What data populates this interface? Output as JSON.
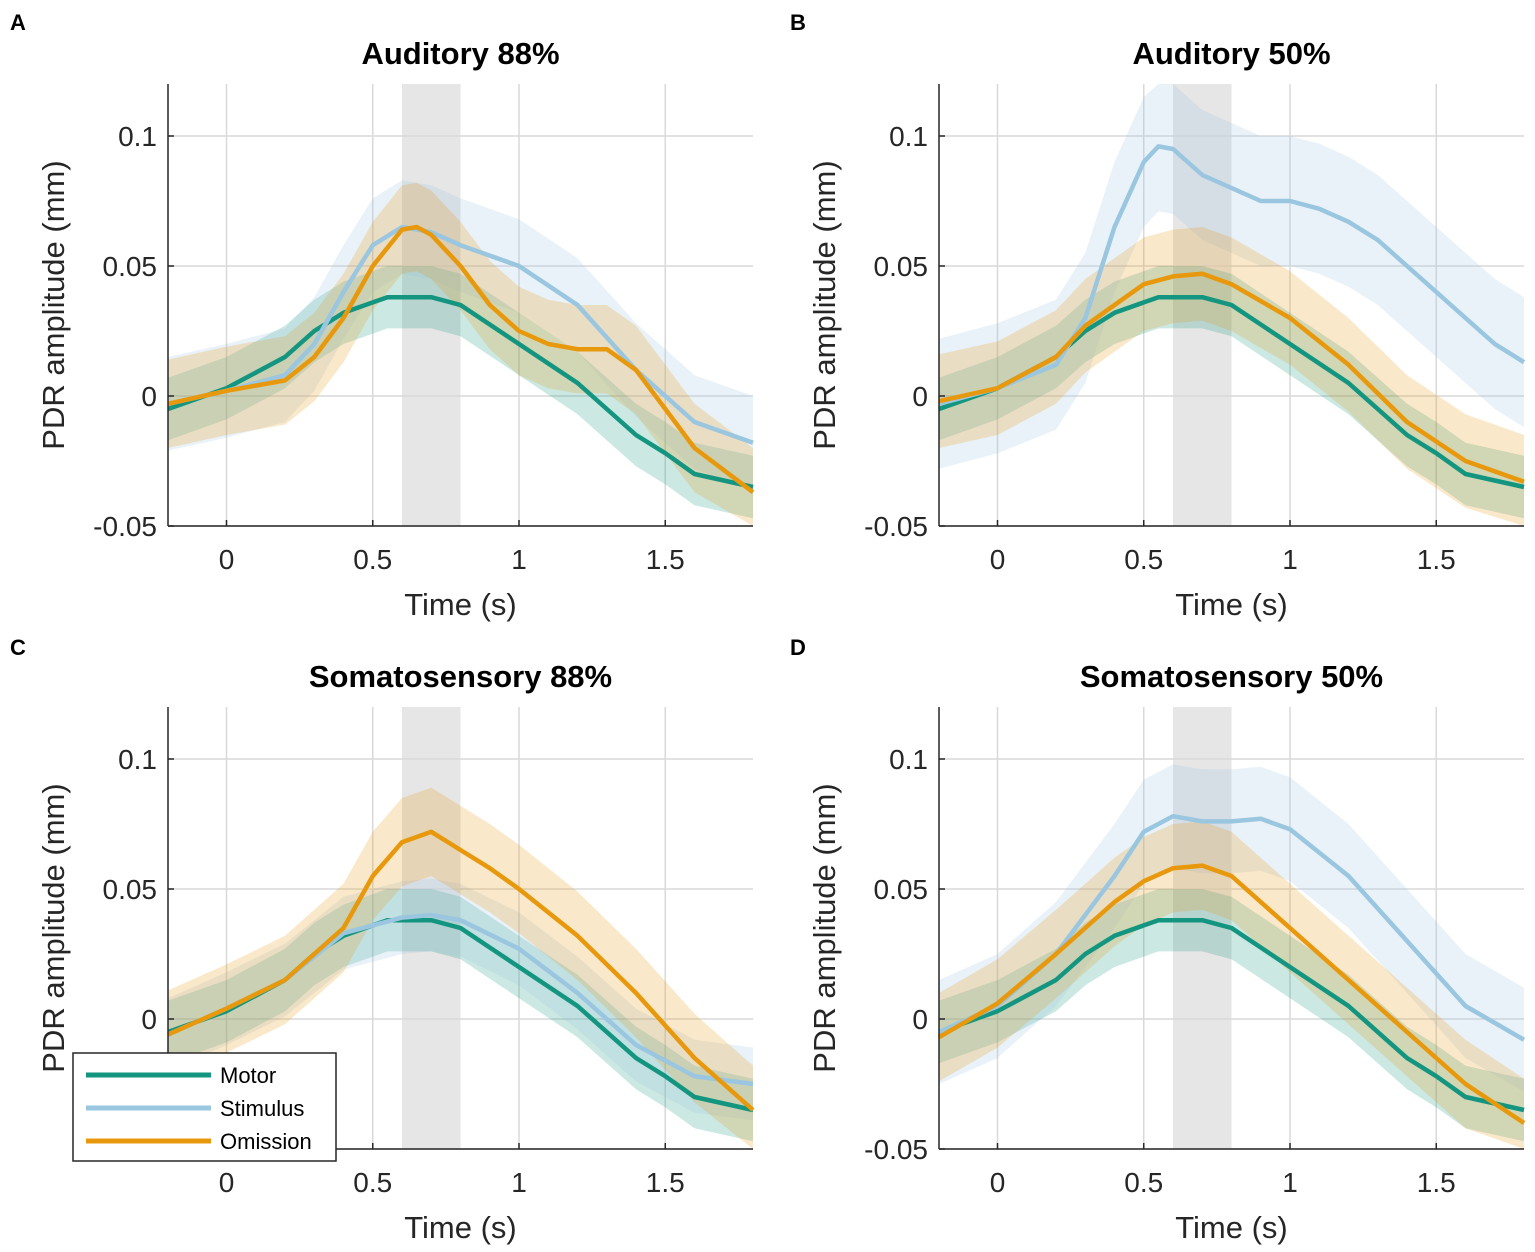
{
  "colors": {
    "Motor": "#13957f",
    "Stimulus": "#9ac6e0",
    "Omission": "#e8980c",
    "highlight": "#e6e6e6",
    "grid": "#d9d9d9"
  },
  "legend": {
    "entries": [
      "Motor",
      "Stimulus",
      "Omission"
    ],
    "placement": "lower-left (panel C)"
  },
  "chart_data": [
    {
      "panel": "A",
      "type": "line",
      "title": "Auditory 88%",
      "xlabel": "Time (s)",
      "ylabel": "PDR amplitude (mm)",
      "xlim": [
        -0.2,
        1.8
      ],
      "ylim": [
        -0.05,
        0.12
      ],
      "xticks": [
        "0",
        "0.5",
        "1",
        "1.5"
      ],
      "xtick_values": [
        0,
        0.5,
        1,
        1.5
      ],
      "yticks": [
        "-0.05",
        "0",
        "0.05",
        "0.1"
      ],
      "ytick_values": [
        -0.05,
        0,
        0.05,
        0.1
      ],
      "grid": true,
      "shaded_interval": [
        0.6,
        0.8
      ],
      "series": [
        {
          "name": "Motor",
          "ci": 0.012,
          "x": [
            -0.2,
            0,
            0.2,
            0.3,
            0.4,
            0.55,
            0.7,
            0.8,
            1.0,
            1.2,
            1.4,
            1.5,
            1.6,
            1.8
          ],
          "y": [
            -0.005,
            0.003,
            0.015,
            0.025,
            0.032,
            0.038,
            0.038,
            0.035,
            0.02,
            0.005,
            -0.015,
            -0.022,
            -0.03,
            -0.035
          ]
        },
        {
          "name": "Stimulus",
          "ci": 0.018,
          "x": [
            -0.2,
            0,
            0.2,
            0.3,
            0.4,
            0.5,
            0.6,
            0.7,
            0.8,
            1.0,
            1.2,
            1.4,
            1.6,
            1.8
          ],
          "y": [
            -0.003,
            0.002,
            0.008,
            0.02,
            0.04,
            0.058,
            0.065,
            0.063,
            0.058,
            0.05,
            0.035,
            0.01,
            -0.01,
            -0.018
          ]
        },
        {
          "name": "Omission",
          "ci": 0.017,
          "x": [
            -0.2,
            0,
            0.2,
            0.3,
            0.4,
            0.5,
            0.6,
            0.65,
            0.7,
            0.8,
            0.9,
            1.0,
            1.1,
            1.2,
            1.3,
            1.4,
            1.5,
            1.6,
            1.8
          ],
          "y": [
            -0.003,
            0.002,
            0.006,
            0.015,
            0.03,
            0.05,
            0.064,
            0.065,
            0.062,
            0.05,
            0.035,
            0.025,
            0.02,
            0.018,
            0.018,
            0.01,
            -0.005,
            -0.02,
            -0.037
          ]
        }
      ]
    },
    {
      "panel": "B",
      "type": "line",
      "title": "Auditory 50%",
      "xlabel": "Time (s)",
      "ylabel": "PDR amplitude (mm)",
      "xlim": [
        -0.2,
        1.8
      ],
      "ylim": [
        -0.05,
        0.12
      ],
      "xticks": [
        "0",
        "0.5",
        "1",
        "1.5"
      ],
      "xtick_values": [
        0,
        0.5,
        1,
        1.5
      ],
      "yticks": [
        "-0.05",
        "0",
        "0.05",
        "0.1"
      ],
      "ytick_values": [
        -0.05,
        0,
        0.05,
        0.1
      ],
      "grid": true,
      "shaded_interval": [
        0.6,
        0.8
      ],
      "series": [
        {
          "name": "Motor",
          "ci": 0.012,
          "x": [
            -0.2,
            0,
            0.2,
            0.3,
            0.4,
            0.55,
            0.7,
            0.8,
            1.0,
            1.2,
            1.4,
            1.5,
            1.6,
            1.8
          ],
          "y": [
            -0.005,
            0.003,
            0.015,
            0.025,
            0.032,
            0.038,
            0.038,
            0.035,
            0.02,
            0.005,
            -0.015,
            -0.022,
            -0.03,
            -0.035
          ]
        },
        {
          "name": "Stimulus",
          "ci": 0.025,
          "x": [
            -0.2,
            0,
            0.2,
            0.3,
            0.4,
            0.5,
            0.55,
            0.6,
            0.7,
            0.8,
            0.9,
            1.0,
            1.1,
            1.2,
            1.3,
            1.4,
            1.5,
            1.6,
            1.7,
            1.8
          ],
          "y": [
            -0.003,
            0.003,
            0.012,
            0.03,
            0.065,
            0.09,
            0.096,
            0.095,
            0.085,
            0.08,
            0.075,
            0.075,
            0.072,
            0.067,
            0.06,
            0.05,
            0.04,
            0.03,
            0.02,
            0.013
          ]
        },
        {
          "name": "Omission",
          "ci": 0.018,
          "x": [
            -0.2,
            0,
            0.2,
            0.3,
            0.4,
            0.5,
            0.6,
            0.7,
            0.8,
            1.0,
            1.2,
            1.4,
            1.6,
            1.8
          ],
          "y": [
            -0.002,
            0.003,
            0.015,
            0.027,
            0.035,
            0.043,
            0.046,
            0.047,
            0.043,
            0.03,
            0.012,
            -0.01,
            -0.025,
            -0.033
          ]
        }
      ]
    },
    {
      "panel": "C",
      "type": "line",
      "title": "Somatosensory 88%",
      "xlabel": "Time (s)",
      "ylabel": "PDR amplitude (mm)",
      "xlim": [
        -0.2,
        1.8
      ],
      "ylim": [
        -0.05,
        0.12
      ],
      "xticks": [
        "0",
        "0.5",
        "1",
        "1.5"
      ],
      "xtick_values": [
        0,
        0.5,
        1,
        1.5
      ],
      "yticks": [
        "-0.05",
        "0",
        "0.05",
        "0.1"
      ],
      "ytick_values": [
        -0.05,
        0,
        0.05,
        0.1
      ],
      "grid": true,
      "shaded_interval": [
        0.6,
        0.8
      ],
      "series": [
        {
          "name": "Motor",
          "ci": 0.012,
          "x": [
            -0.2,
            0,
            0.2,
            0.3,
            0.4,
            0.55,
            0.7,
            0.8,
            1.0,
            1.2,
            1.4,
            1.5,
            1.6,
            1.8
          ],
          "y": [
            -0.005,
            0.003,
            0.015,
            0.025,
            0.032,
            0.038,
            0.038,
            0.035,
            0.02,
            0.005,
            -0.015,
            -0.022,
            -0.03,
            -0.035
          ]
        },
        {
          "name": "Stimulus",
          "ci": 0.014,
          "x": [
            -0.2,
            0,
            0.2,
            0.4,
            0.6,
            0.7,
            0.8,
            1.0,
            1.2,
            1.4,
            1.6,
            1.8
          ],
          "y": [
            -0.006,
            0.004,
            0.015,
            0.033,
            0.039,
            0.04,
            0.038,
            0.027,
            0.01,
            -0.01,
            -0.022,
            -0.025
          ]
        },
        {
          "name": "Omission",
          "ci": 0.017,
          "x": [
            -0.2,
            0,
            0.2,
            0.35,
            0.4,
            0.5,
            0.6,
            0.7,
            0.8,
            0.9,
            1.0,
            1.2,
            1.4,
            1.6,
            1.8
          ],
          "y": [
            -0.006,
            0.004,
            0.015,
            0.03,
            0.035,
            0.055,
            0.068,
            0.072,
            0.065,
            0.058,
            0.05,
            0.032,
            0.01,
            -0.015,
            -0.035
          ]
        }
      ]
    },
    {
      "panel": "D",
      "type": "line",
      "title": "Somatosensory 50%",
      "xlabel": "Time (s)",
      "ylabel": "PDR amplitude (mm)",
      "xlim": [
        -0.2,
        1.8
      ],
      "ylim": [
        -0.05,
        0.12
      ],
      "xticks": [
        "0",
        "0.5",
        "1",
        "1.5"
      ],
      "xtick_values": [
        0,
        0.5,
        1,
        1.5
      ],
      "yticks": [
        "-0.05",
        "0",
        "0.05",
        "0.1"
      ],
      "ytick_values": [
        -0.05,
        0,
        0.05,
        0.1
      ],
      "grid": true,
      "shaded_interval": [
        0.6,
        0.8
      ],
      "series": [
        {
          "name": "Motor",
          "ci": 0.012,
          "x": [
            -0.2,
            0,
            0.2,
            0.3,
            0.4,
            0.55,
            0.7,
            0.8,
            1.0,
            1.2,
            1.4,
            1.5,
            1.6,
            1.8
          ],
          "y": [
            -0.005,
            0.003,
            0.015,
            0.025,
            0.032,
            0.038,
            0.038,
            0.035,
            0.02,
            0.005,
            -0.015,
            -0.022,
            -0.03,
            -0.035
          ]
        },
        {
          "name": "Stimulus",
          "ci": 0.02,
          "x": [
            -0.2,
            0,
            0.2,
            0.4,
            0.5,
            0.6,
            0.7,
            0.8,
            0.9,
            1.0,
            1.2,
            1.4,
            1.6,
            1.8
          ],
          "y": [
            -0.005,
            0.005,
            0.025,
            0.055,
            0.072,
            0.078,
            0.076,
            0.076,
            0.077,
            0.073,
            0.055,
            0.03,
            0.005,
            -0.008
          ]
        },
        {
          "name": "Omission",
          "ci": 0.017,
          "x": [
            -0.2,
            0,
            0.2,
            0.4,
            0.5,
            0.6,
            0.7,
            0.8,
            1.0,
            1.2,
            1.4,
            1.6,
            1.8
          ],
          "y": [
            -0.007,
            0.006,
            0.025,
            0.045,
            0.053,
            0.058,
            0.059,
            0.055,
            0.035,
            0.015,
            -0.005,
            -0.025,
            -0.04
          ]
        }
      ]
    }
  ]
}
